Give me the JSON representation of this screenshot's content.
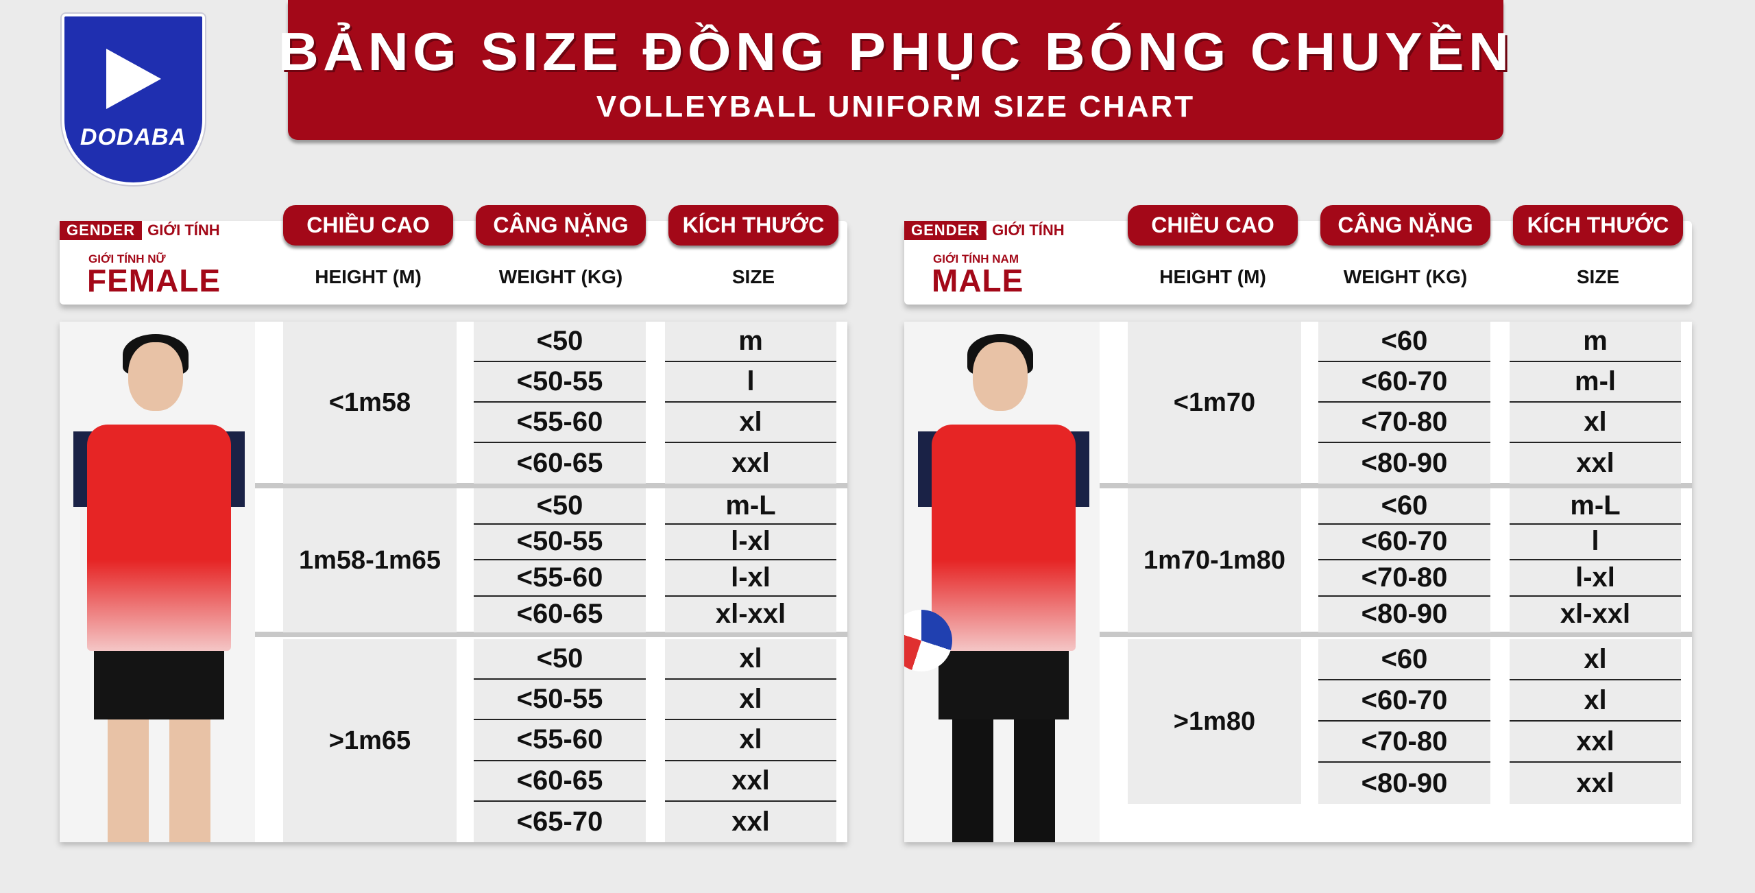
{
  "brand": {
    "name": "DODABA",
    "color": "#1f2fb0"
  },
  "colors": {
    "accent": "#a30818",
    "background": "#ebebeb",
    "cell": "#ececec"
  },
  "banner": {
    "title": "BẢNG SIZE ĐỒNG PHỤC BÓNG CHUYỀN",
    "subtitle": "VOLLEYBALL UNIFORM SIZE CHART"
  },
  "headers": [
    {
      "vn": "CHIỀU CAO",
      "en": "HEIGHT (M)"
    },
    {
      "vn": "CÂNG NẶNG",
      "en": "WEIGHT (KG)"
    },
    {
      "vn": "KÍCH THƯỚC",
      "en": "SIZE"
    }
  ],
  "panels": [
    {
      "key": "female",
      "gender_en": "GENDER",
      "gender_vn": "GIỚI TÍNH",
      "sub_vn": "GIỚI TÍNH NỮ",
      "name": "FEMALE",
      "groups": [
        {
          "height": "<1m58",
          "rows": [
            [
              "<50",
              "m"
            ],
            [
              "<50-55",
              "l"
            ],
            [
              "<55-60",
              "xl"
            ],
            [
              "<60-65",
              "xxl"
            ]
          ]
        },
        {
          "height": "1m58-1m65",
          "rows": [
            [
              "<50",
              "m-L"
            ],
            [
              "<50-55",
              "l-xl"
            ],
            [
              "<55-60",
              "l-xl"
            ],
            [
              "<60-65",
              "xl-xxl"
            ]
          ]
        },
        {
          "height": ">1m65",
          "rows": [
            [
              "<50",
              "xl"
            ],
            [
              "<50-55",
              "xl"
            ],
            [
              "<55-60",
              "xl"
            ],
            [
              "<60-65",
              "xxl"
            ],
            [
              "<65-70",
              "xxl"
            ]
          ]
        }
      ]
    },
    {
      "key": "male",
      "gender_en": "GENDER",
      "gender_vn": "GIỚI TÍNH",
      "sub_vn": "GIỚI TÍNH NAM",
      "name": "MALE",
      "groups": [
        {
          "height": "<1m70",
          "rows": [
            [
              "<60",
              "m"
            ],
            [
              "<60-70",
              "m-l"
            ],
            [
              "<70-80",
              "xl"
            ],
            [
              "<80-90",
              "xxl"
            ]
          ]
        },
        {
          "height": "1m70-1m80",
          "rows": [
            [
              "<60",
              "m-L"
            ],
            [
              "<60-70",
              "l"
            ],
            [
              "<70-80",
              "l-xl"
            ],
            [
              "<80-90",
              "xl-xxl"
            ]
          ]
        },
        {
          "height": ">1m80",
          "rows": [
            [
              "<60",
              "xl"
            ],
            [
              "<60-70",
              "xl"
            ],
            [
              "<70-80",
              "xxl"
            ],
            [
              "<80-90",
              "xxl"
            ]
          ]
        }
      ]
    }
  ]
}
